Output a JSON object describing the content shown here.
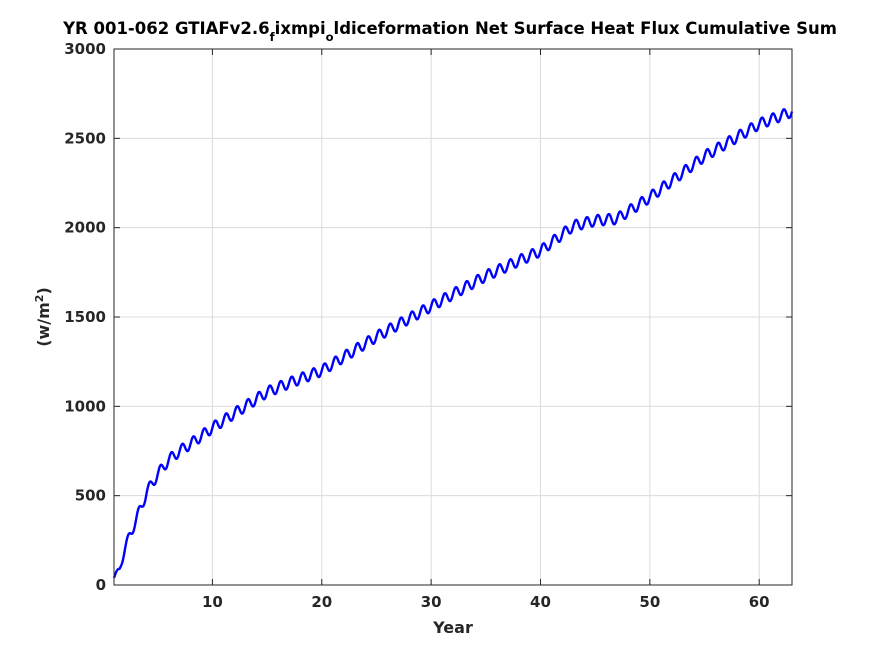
{
  "chart_data": {
    "type": "line",
    "title": {
      "part1": "YR 001-062 GTIAFv2.6",
      "sub1": "f",
      "part2": "ixmpi",
      "sub2": "o",
      "part3": "ldiceformation Net Surface Heat Flux  Cumulative Sum"
    },
    "xlabel": "Year",
    "ylabel": {
      "base": "(w/m",
      "sup": "2",
      "close": ")"
    },
    "xlim": [
      1,
      63
    ],
    "ylim": [
      0,
      3000
    ],
    "xticks": [
      10,
      20,
      30,
      40,
      50,
      60
    ],
    "yticks": [
      0,
      500,
      1000,
      1500,
      2000,
      2500,
      3000
    ],
    "grid": true,
    "line_color": "#0000ff",
    "trend": {
      "x": [
        1,
        1.5,
        2,
        2.5,
        3,
        3.5,
        4,
        5,
        6,
        7,
        8,
        10,
        12,
        15,
        17,
        20,
        25,
        30,
        35,
        40,
        43,
        45,
        47,
        50,
        55,
        60,
        63
      ],
      "y": [
        40,
        90,
        200,
        290,
        360,
        440,
        520,
        620,
        700,
        750,
        790,
        880,
        960,
        1080,
        1130,
        1200,
        1390,
        1560,
        1730,
        1870,
        2010,
        2040,
        2050,
        2170,
        2400,
        2580,
        2650
      ]
    },
    "seasonal_amplitude": 30,
    "period_years": 1
  }
}
